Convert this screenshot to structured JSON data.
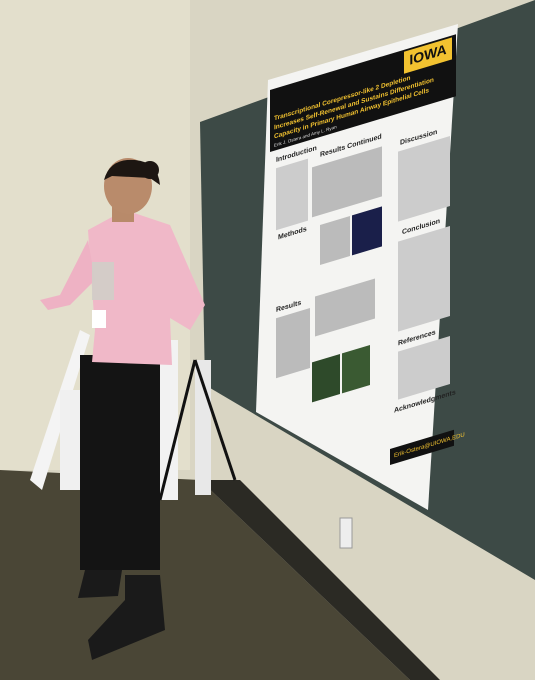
{
  "poster": {
    "logo": "IOWA",
    "title_lines": [
      "Transcriptional Corepressor-like 2 Depletion",
      "Increases Self-Renewal and Sustains Differentiation",
      "Capacity in Primary Human Airway Epithelial Cells"
    ],
    "authors": "Erik J. Ostera and Amy L. Ryan",
    "sections": [
      "Introduction",
      "Results Continued",
      "Methods",
      "Results",
      "Discussion",
      "Conclusion",
      "References",
      "Acknowledgments"
    ],
    "email": "Erik-Ostera@UIOWA.EDU"
  }
}
